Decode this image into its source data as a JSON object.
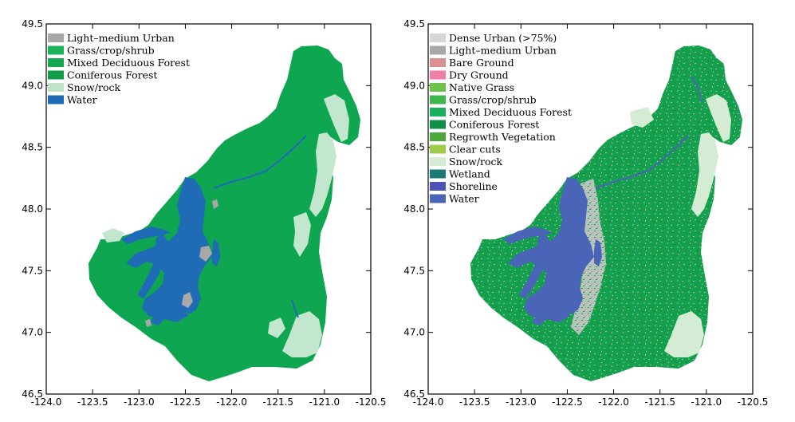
{
  "panels": [
    {
      "id": "left",
      "xticks": [
        "-124.0",
        "-123.5",
        "-123.0",
        "-122.5",
        "-122.0",
        "-121.5",
        "-121.0",
        "-120.5"
      ],
      "yticks": [
        "49.5",
        "49.0",
        "48.5",
        "48.0",
        "47.5",
        "47.0",
        "46.5"
      ],
      "legend": [
        {
          "label": "Light–medium Urban",
          "color": "#a8a8a8"
        },
        {
          "label": "Grass/crop/shrub",
          "color": "#1db35a"
        },
        {
          "label": "Mixed Deciduous Forest",
          "color": "#15a850"
        },
        {
          "label": "Coniferous Forest",
          "color": "#0f9b48"
        },
        {
          "label": "Snow/rock",
          "color": "#bfe3c9"
        },
        {
          "label": "Water",
          "color": "#1f6bb5"
        }
      ]
    },
    {
      "id": "right",
      "xticks": [
        "-124.0",
        "-123.5",
        "-123.0",
        "-122.5",
        "-122.0",
        "-121.5",
        "-121.0",
        "-120.5"
      ],
      "yticks": [
        "49.5",
        "49.0",
        "48.5",
        "48.0",
        "47.5",
        "47.0",
        "46.5"
      ],
      "legend": [
        {
          "label": "Dense Urban (>75%)",
          "color": "#d6d6d6"
        },
        {
          "label": "Light–medium Urban",
          "color": "#a8a8a8"
        },
        {
          "label": "Bare Ground",
          "color": "#d99090"
        },
        {
          "label": "Dry Ground",
          "color": "#f080a8"
        },
        {
          "label": "Native Grass",
          "color": "#6cc24a"
        },
        {
          "label": "Grass/crop/shrub",
          "color": "#3cb84a"
        },
        {
          "label": "Mixed Deciduous Forest",
          "color": "#18b05a"
        },
        {
          "label": "Coniferous Forest",
          "color": "#0f9048"
        },
        {
          "label": "Regrowth Vegetation",
          "color": "#4aa83c"
        },
        {
          "label": "Clear cuts",
          "color": "#9ccc4a"
        },
        {
          "label": "Snow/rock",
          "color": "#d4ecd4"
        },
        {
          "label": "Wetland",
          "color": "#1a7a74"
        },
        {
          "label": "Shoreline",
          "color": "#4a54b8"
        },
        {
          "label": "Water",
          "color": "#4a64b8"
        }
      ]
    }
  ]
}
